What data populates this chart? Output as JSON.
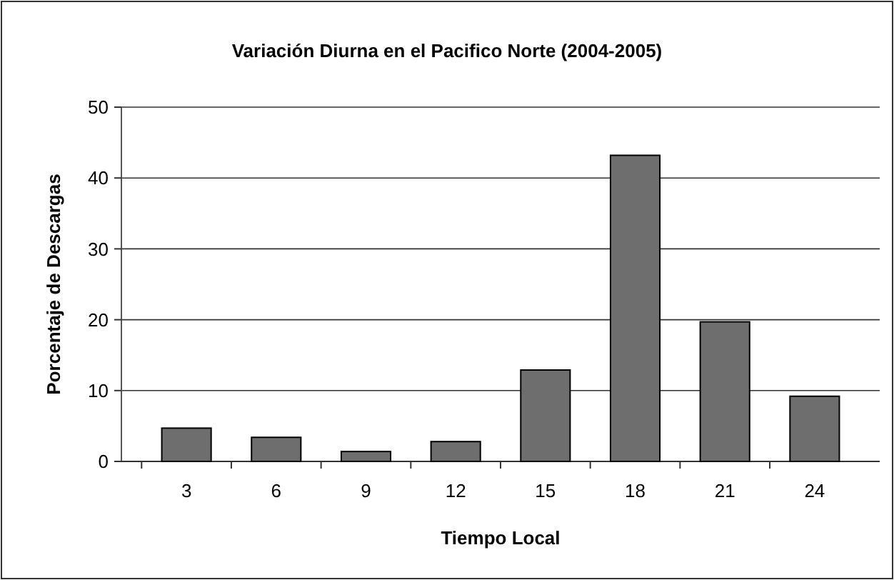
{
  "chart_data": {
    "type": "bar",
    "title": "Variación Diurna en el Pacifico Norte (2004-2005)",
    "xlabel": "Tiempo Local",
    "ylabel": "Porcentaje de Descargas",
    "categories": [
      "3",
      "6",
      "9",
      "12",
      "15",
      "18",
      "21",
      "24"
    ],
    "values": [
      4.7,
      3.4,
      1.4,
      2.8,
      12.9,
      43.2,
      19.7,
      9.2
    ],
    "color": "#6e6e6e",
    "ylim": [
      0,
      50
    ],
    "yticks": [
      0,
      10,
      20,
      30,
      40,
      50
    ],
    "grid": "y"
  }
}
